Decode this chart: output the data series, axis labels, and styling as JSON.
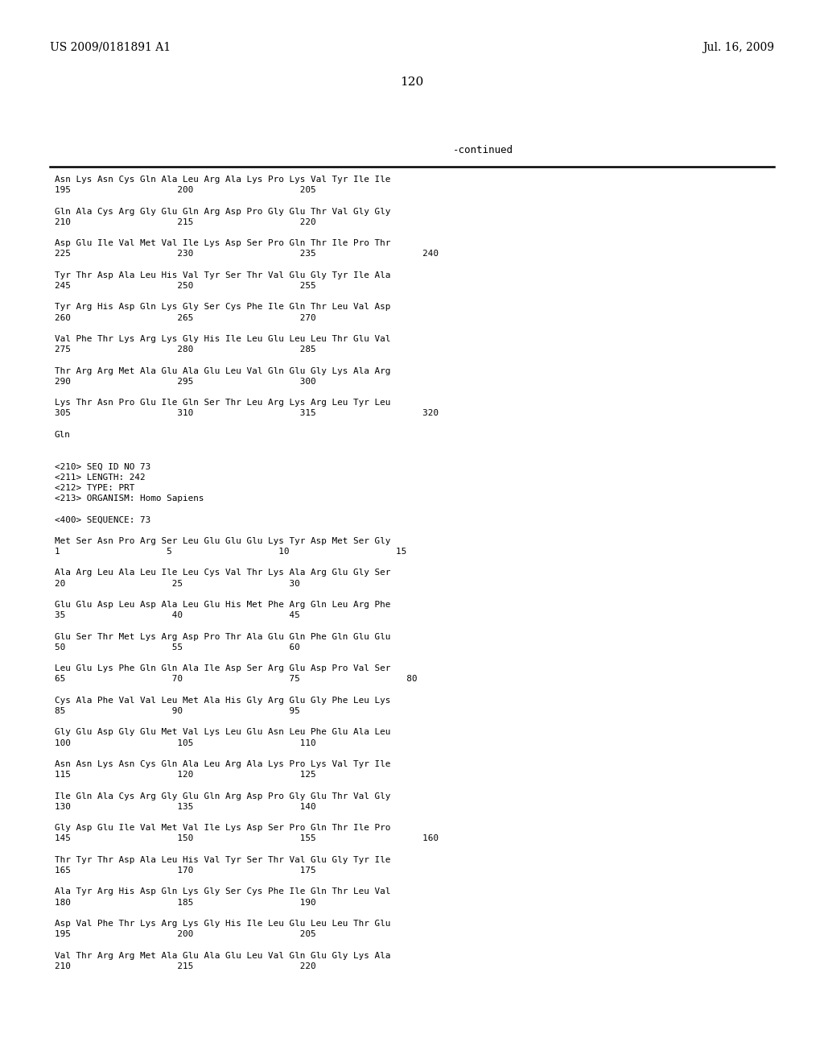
{
  "header_left": "US 2009/0181891 A1",
  "header_right": "Jul. 16, 2009",
  "page_number": "120",
  "continued_label": "-continued",
  "background_color": "#ffffff",
  "text_color": "#000000",
  "content_lines": [
    "Asn Lys Asn Cys Gln Ala Leu Arg Ala Lys Pro Lys Val Tyr Ile Ile",
    "195                    200                    205",
    "",
    "Gln Ala Cys Arg Gly Glu Gln Arg Asp Pro Gly Glu Thr Val Gly Gly",
    "210                    215                    220",
    "",
    "Asp Glu Ile Val Met Val Ile Lys Asp Ser Pro Gln Thr Ile Pro Thr",
    "225                    230                    235                    240",
    "",
    "Tyr Thr Asp Ala Leu His Val Tyr Ser Thr Val Glu Gly Tyr Ile Ala",
    "245                    250                    255",
    "",
    "Tyr Arg His Asp Gln Lys Gly Ser Cys Phe Ile Gln Thr Leu Val Asp",
    "260                    265                    270",
    "",
    "Val Phe Thr Lys Arg Lys Gly His Ile Leu Glu Leu Leu Thr Glu Val",
    "275                    280                    285",
    "",
    "Thr Arg Arg Met Ala Glu Ala Glu Leu Val Gln Glu Gly Lys Ala Arg",
    "290                    295                    300",
    "",
    "Lys Thr Asn Pro Glu Ile Gln Ser Thr Leu Arg Lys Arg Leu Tyr Leu",
    "305                    310                    315                    320",
    "",
    "Gln",
    "",
    "",
    "<210> SEQ ID NO 73",
    "<211> LENGTH: 242",
    "<212> TYPE: PRT",
    "<213> ORGANISM: Homo Sapiens",
    "",
    "<400> SEQUENCE: 73",
    "",
    "Met Ser Asn Pro Arg Ser Leu Glu Glu Glu Lys Tyr Asp Met Ser Gly",
    "1                    5                    10                    15",
    "",
    "Ala Arg Leu Ala Leu Ile Leu Cys Val Thr Lys Ala Arg Glu Gly Ser",
    "20                    25                    30",
    "",
    "Glu Glu Asp Leu Asp Ala Leu Glu His Met Phe Arg Gln Leu Arg Phe",
    "35                    40                    45",
    "",
    "Glu Ser Thr Met Lys Arg Asp Pro Thr Ala Glu Gln Phe Gln Glu Glu",
    "50                    55                    60",
    "",
    "Leu Glu Lys Phe Gln Gln Ala Ile Asp Ser Arg Glu Asp Pro Val Ser",
    "65                    70                    75                    80",
    "",
    "Cys Ala Phe Val Val Leu Met Ala His Gly Arg Glu Gly Phe Leu Lys",
    "85                    90                    95",
    "",
    "Gly Glu Asp Gly Glu Met Val Lys Leu Glu Asn Leu Phe Glu Ala Leu",
    "100                    105                    110",
    "",
    "Asn Asn Lys Asn Cys Gln Ala Leu Arg Ala Lys Pro Lys Val Tyr Ile",
    "115                    120                    125",
    "",
    "Ile Gln Ala Cys Arg Gly Glu Gln Arg Asp Pro Gly Glu Thr Val Gly",
    "130                    135                    140",
    "",
    "Gly Asp Glu Ile Val Met Val Ile Lys Asp Ser Pro Gln Thr Ile Pro",
    "145                    150                    155                    160",
    "",
    "Thr Tyr Thr Asp Ala Leu His Val Tyr Ser Thr Val Glu Gly Tyr Ile",
    "165                    170                    175",
    "",
    "Ala Tyr Arg His Asp Gln Lys Gly Ser Cys Phe Ile Gln Thr Leu Val",
    "180                    185                    190",
    "",
    "Asp Val Phe Thr Lys Arg Lys Gly His Ile Leu Glu Leu Leu Thr Glu",
    "195                    200                    205",
    "",
    "Val Thr Arg Arg Met Ala Glu Ala Glu Leu Val Gln Glu Gly Lys Ala",
    "210                    215                    220"
  ]
}
